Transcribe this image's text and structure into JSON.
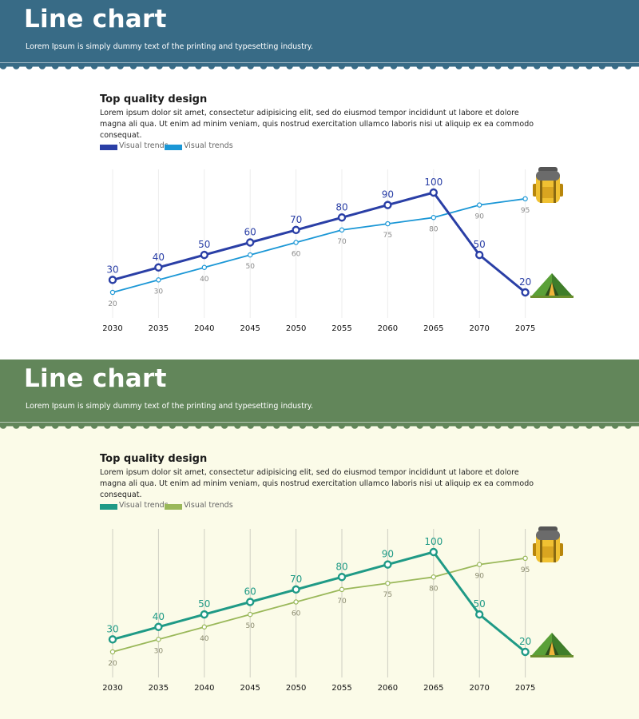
{
  "panels": [
    {
      "header": {
        "title": "Line chart",
        "subtitle": "Lorem Ipsum is simply dummy text of the printing and typesetting industry."
      },
      "section": {
        "title": "Top quality design",
        "text": "Lorem ipsum dolor sit amet, consectetur adipisicing elit, sed do eiusmod tempor incididunt ut labore et dolore magna ali qua. Ut enim ad minim veniam, quis nostrud exercitation ullamco laboris nisi ut aliquip ex ea commodo consequat."
      },
      "legend": [
        {
          "label": "Visual trends"
        },
        {
          "label": "Visual trends"
        }
      ],
      "colors": {
        "header": "#386b86",
        "background": "#ffffff",
        "series1": "#2a3fa6",
        "series2": "#1b97d6",
        "grid": "#ececec",
        "label2": "#8a8a8a"
      },
      "icons": {
        "top_right": "backpack-icon",
        "bottom_right": "tent-icon"
      }
    },
    {
      "header": {
        "title": "Line chart",
        "subtitle": "Lorem Ipsum is simply dummy text of the printing and typesetting industry."
      },
      "section": {
        "title": "Top quality design",
        "text": "Lorem ipsum dolor sit amet, consectetur adipisicing elit, sed do eiusmod tempor incididunt ut labore et dolore magna ali qua. Ut enim ad minim veniam, quis nostrud exercitation ullamco laboris nisi ut aliquip ex ea commodo consequat."
      },
      "legend": [
        {
          "label": "Visual trends"
        },
        {
          "label": "Visual trends"
        }
      ],
      "colors": {
        "header": "#62865a",
        "background": "#fbfbe8",
        "series1": "#1f9a86",
        "series2": "#9ab85a",
        "grid": "#cfcfc2",
        "label2": "#8a8a6e"
      },
      "icons": {
        "top_right": "backpack-icon",
        "bottom_right": "tent-icon"
      }
    }
  ],
  "chart_data": [
    {
      "type": "line",
      "x": [
        "2030",
        "2035",
        "2040",
        "2045",
        "2050",
        "2055",
        "2060",
        "2065",
        "2070",
        "2075"
      ],
      "series": [
        {
          "name": "Visual trends",
          "values": [
            30,
            40,
            50,
            60,
            70,
            80,
            90,
            100,
            50,
            20
          ]
        },
        {
          "name": "Visual trends",
          "values": [
            20,
            30,
            40,
            50,
            60,
            70,
            75,
            80,
            90,
            95
          ]
        }
      ],
      "ylim": [
        20,
        100
      ],
      "data_labels": true,
      "grid": "vertical",
      "legend": "top-left"
    },
    {
      "type": "line",
      "x": [
        "2030",
        "2035",
        "2040",
        "2045",
        "2050",
        "2055",
        "2060",
        "2065",
        "2070",
        "2075"
      ],
      "series": [
        {
          "name": "Visual trends",
          "values": [
            30,
            40,
            50,
            60,
            70,
            80,
            90,
            100,
            50,
            20
          ]
        },
        {
          "name": "Visual trends",
          "values": [
            20,
            30,
            40,
            50,
            60,
            70,
            75,
            80,
            90,
            95
          ]
        }
      ],
      "ylim": [
        20,
        100
      ],
      "data_labels": true,
      "grid": "vertical",
      "legend": "top-left"
    }
  ]
}
